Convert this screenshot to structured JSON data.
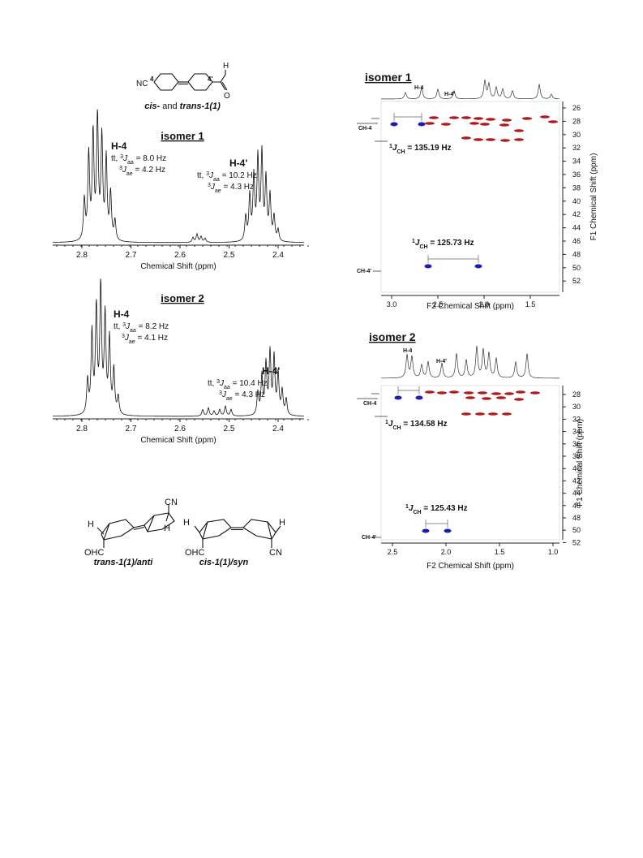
{
  "top_structure": {
    "nc": "NC",
    "c4": "4",
    "c4p": "4'",
    "h": "H",
    "o": "O",
    "caption": [
      "cis-",
      " and ",
      "trans-1(1)"
    ]
  },
  "spectra": [
    {
      "title": "isomer 1",
      "h4": "H-4",
      "h4_j": [
        {
          "pre": "tt, ",
          "sup": "3",
          "sym": "J",
          "sub": "aa",
          "post": " = 8.0 Hz"
        },
        {
          "sup": "3",
          "sym": "J",
          "sub": "ae",
          "post": " = 4.2 Hz"
        }
      ],
      "h4p": "H-4'",
      "h4p_j": [
        {
          "pre": "tt, ",
          "sup": "3",
          "sym": "J",
          "sub": "aa",
          "post": " = 10.2 Hz"
        },
        {
          "sup": "3",
          "sym": "J",
          "sub": "ae",
          "post": " = 4.3 Hz"
        }
      ],
      "xticks": [
        "2.8",
        "2.7",
        "2.6",
        "2.5",
        "2.4"
      ],
      "xlabel": "Chemical Shift (ppm)"
    },
    {
      "title": "isomer 2",
      "h4": "H-4",
      "h4_j": [
        {
          "pre": "tt, ",
          "sup": "3",
          "sym": "J",
          "sub": "aa",
          "post": " = 8.2 Hz"
        },
        {
          "sup": "3",
          "sym": "J",
          "sub": "ae",
          "post": " = 4.1 Hz"
        }
      ],
      "h4p": "H-4'",
      "h4p_j": [
        {
          "pre": "tt, ",
          "sup": "3",
          "sym": "J",
          "sub": "aa",
          "post": " = 10.4 Hz"
        },
        {
          "sup": "3",
          "sym": "J",
          "sub": "ae",
          "post": " = 4.3 Hz"
        }
      ],
      "xticks": [
        "2.8",
        "2.7",
        "2.6",
        "2.5",
        "2.4"
      ],
      "xlabel": "Chemical Shift (ppm)"
    }
  ],
  "bottom_structures": [
    {
      "labels": [
        "H",
        "CN",
        "H",
        "OHC"
      ],
      "caption": "trans-1(1)/anti"
    },
    {
      "labels": [
        "H",
        "H",
        "OHC",
        "CN"
      ],
      "caption": "cis-1(1)/syn"
    }
  ],
  "hsqc": [
    {
      "title": "isomer 1",
      "h4": "H-4",
      "h4p": "H-4'",
      "ch4": "CH-4",
      "ch4p": "CH-4'",
      "j": [
        {
          "sup": "1",
          "sym": "J",
          "sub": "CH",
          "post": " = 135.19 Hz"
        },
        {
          "sup": "1",
          "sym": "J",
          "sub": "CH",
          "post": " = 125.73 Hz"
        }
      ],
      "xticks": [
        "3.0",
        "2.5",
        "2.0",
        "1.5"
      ],
      "yticks": [
        "26",
        "28",
        "30",
        "32",
        "34",
        "36",
        "38",
        "40",
        "42",
        "44",
        "46",
        "48",
        "50",
        "52"
      ],
      "xlabel": "F2 Chemical Shift (ppm)",
      "ylabel": "F1 Chemical Shift (ppm)"
    },
    {
      "title": "isomer 2",
      "h4": "H-4",
      "h4p": "H-4'",
      "ch4": "CH-4",
      "ch4p": "CH-4'",
      "j": [
        {
          "sup": "1",
          "sym": "J",
          "sub": "CH",
          "post": " = 134.58 Hz"
        },
        {
          "sup": "1",
          "sym": "J",
          "sub": "CH",
          "post": " = 125.43 Hz"
        }
      ],
      "xticks": [
        "2.5",
        "2.0",
        "1.5",
        "1.0"
      ],
      "yticks": [
        "28",
        "30",
        "32",
        "34",
        "36",
        "38",
        "40",
        "42",
        "44",
        "46",
        "48",
        "50",
        "52"
      ],
      "xlabel": "F2 Chemical Shift (ppm)",
      "ylabel": "F1 Chemical Shift (ppm)"
    }
  ]
}
